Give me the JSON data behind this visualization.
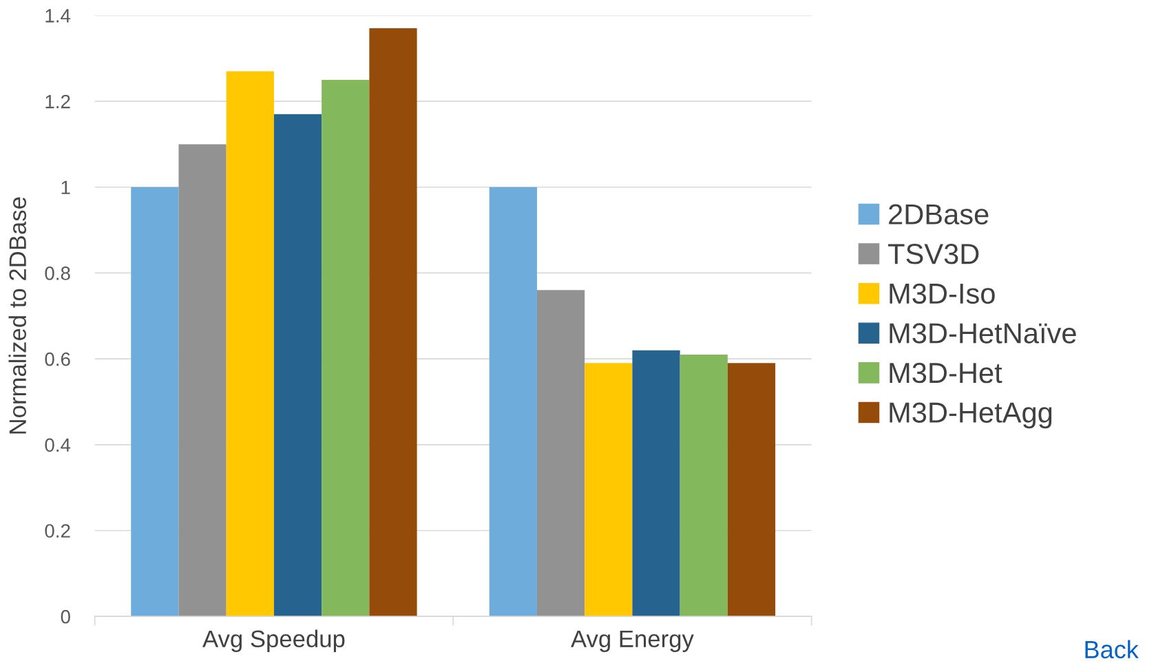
{
  "chart_data": {
    "type": "bar",
    "ylabel": "Normalized to 2DBase",
    "categories": [
      "Avg Speedup",
      "Avg Energy"
    ],
    "series": [
      {
        "name": "2DBase",
        "color": "#6eaddb",
        "values": [
          1,
          1
        ]
      },
      {
        "name": "TSV3D",
        "color": "#929292",
        "values": [
          1.1,
          0.76
        ]
      },
      {
        "name": "M3D-Iso",
        "color": "#ffc800",
        "values": [
          1.27,
          0.59
        ]
      },
      {
        "name": "M3D-HetNaïve",
        "color": "#26638e",
        "values": [
          1.17,
          0.62
        ]
      },
      {
        "name": "M3D-Het",
        "color": "#83b85c",
        "values": [
          1.25,
          0.61
        ]
      },
      {
        "name": "M3D-HetAgg",
        "color": "#954b0a",
        "values": [
          1.37,
          0.59
        ]
      }
    ],
    "ylim": [
      0,
      1.4
    ],
    "yticks": [
      0,
      0.2,
      0.4,
      0.6,
      0.8,
      1,
      1.2,
      1.4
    ],
    "grid": "y",
    "legend": "right",
    "annotations": [
      "Back"
    ]
  }
}
